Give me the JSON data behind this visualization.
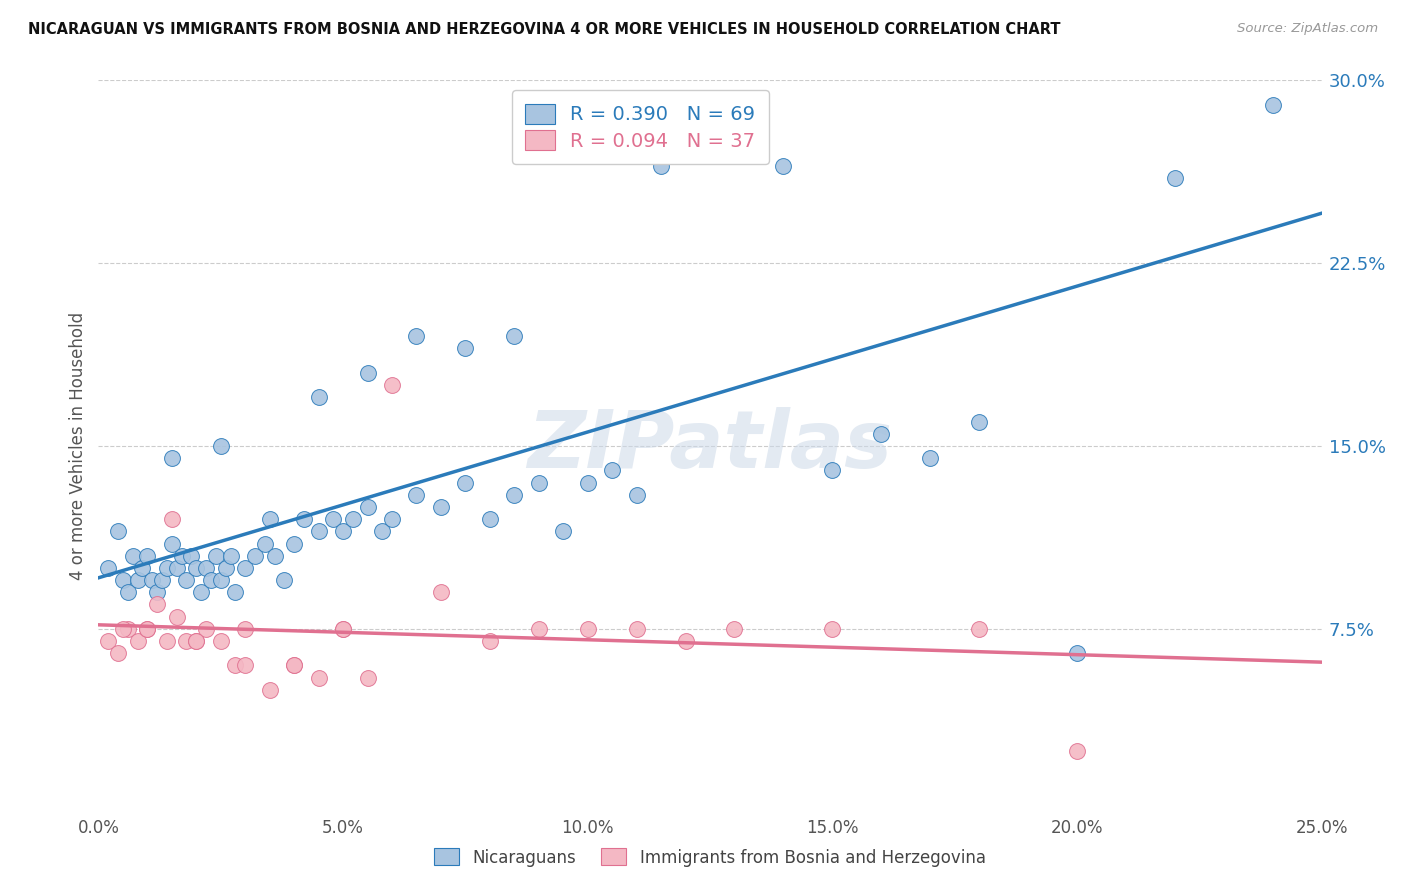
{
  "title": "NICARAGUAN VS IMMIGRANTS FROM BOSNIA AND HERZEGOVINA 4 OR MORE VEHICLES IN HOUSEHOLD CORRELATION CHART",
  "source": "Source: ZipAtlas.com",
  "ylabel": "4 or more Vehicles in Household",
  "blue_R": 0.39,
  "blue_N": 69,
  "pink_R": 0.094,
  "pink_N": 37,
  "blue_color": "#a8c4e0",
  "pink_color": "#f4b8c4",
  "blue_line_color": "#2b7bba",
  "pink_line_color": "#e07090",
  "legend_label_blue": "Nicaraguans",
  "legend_label_pink": "Immigrants from Bosnia and Herzegovina",
  "watermark": "ZIPatlas",
  "xlim": [
    0.0,
    25.0
  ],
  "ylim": [
    0.0,
    30.0
  ],
  "ytick_vals": [
    7.5,
    15.0,
    22.5,
    30.0
  ],
  "xtick_vals": [
    0.0,
    5.0,
    10.0,
    15.0,
    20.0,
    25.0
  ],
  "blue_scatter_x": [
    0.2,
    0.4,
    0.5,
    0.6,
    0.7,
    0.8,
    0.9,
    1.0,
    1.1,
    1.2,
    1.3,
    1.4,
    1.5,
    1.6,
    1.7,
    1.8,
    1.9,
    2.0,
    2.1,
    2.2,
    2.3,
    2.4,
    2.5,
    2.6,
    2.7,
    2.8,
    3.0,
    3.2,
    3.4,
    3.6,
    3.8,
    4.0,
    4.2,
    4.5,
    4.8,
    5.0,
    5.2,
    5.5,
    5.8,
    6.0,
    6.5,
    7.0,
    7.5,
    8.0,
    8.5,
    9.0,
    9.5,
    10.0,
    10.5,
    11.0,
    11.5,
    12.0,
    13.0,
    14.0,
    15.0,
    16.0,
    17.0,
    18.0,
    20.0,
    22.0,
    24.0,
    1.5,
    2.5,
    3.5,
    4.5,
    5.5,
    6.5,
    7.5,
    8.5
  ],
  "blue_scatter_y": [
    10.0,
    11.5,
    9.5,
    9.0,
    10.5,
    9.5,
    10.0,
    10.5,
    9.5,
    9.0,
    9.5,
    10.0,
    11.0,
    10.0,
    10.5,
    9.5,
    10.5,
    10.0,
    9.0,
    10.0,
    9.5,
    10.5,
    9.5,
    10.0,
    10.5,
    9.0,
    10.0,
    10.5,
    11.0,
    10.5,
    9.5,
    11.0,
    12.0,
    11.5,
    12.0,
    11.5,
    12.0,
    12.5,
    11.5,
    12.0,
    13.0,
    12.5,
    13.5,
    12.0,
    13.0,
    13.5,
    11.5,
    13.5,
    14.0,
    13.0,
    26.5,
    27.0,
    27.5,
    26.5,
    14.0,
    15.5,
    14.5,
    16.0,
    6.5,
    26.0,
    29.0,
    14.5,
    15.0,
    12.0,
    17.0,
    18.0,
    19.5,
    19.0,
    19.5
  ],
  "pink_scatter_x": [
    0.2,
    0.4,
    0.6,
    0.8,
    1.0,
    1.2,
    1.4,
    1.6,
    1.8,
    2.0,
    2.2,
    2.5,
    2.8,
    3.0,
    3.5,
    4.0,
    4.5,
    5.0,
    5.5,
    6.0,
    7.0,
    8.0,
    9.0,
    10.0,
    11.0,
    12.0,
    13.0,
    15.0,
    18.0,
    0.5,
    1.0,
    1.5,
    2.0,
    3.0,
    4.0,
    5.0,
    20.0
  ],
  "pink_scatter_y": [
    7.0,
    6.5,
    7.5,
    7.0,
    7.5,
    8.5,
    7.0,
    8.0,
    7.0,
    7.0,
    7.5,
    7.0,
    6.0,
    7.5,
    5.0,
    6.0,
    5.5,
    7.5,
    5.5,
    17.5,
    9.0,
    7.0,
    7.5,
    7.5,
    7.5,
    7.0,
    7.5,
    7.5,
    7.5,
    7.5,
    7.5,
    12.0,
    7.0,
    6.0,
    6.0,
    7.5,
    2.5
  ]
}
